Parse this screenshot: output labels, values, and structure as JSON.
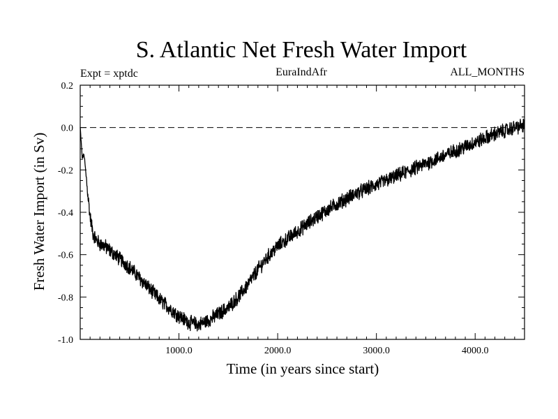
{
  "chart_data": {
    "type": "line",
    "title": "S. Atlantic Net Fresh Water Import",
    "subtitle_left": "Expt = xptdc",
    "subtitle_center": "EuraIndAfr",
    "subtitle_right": "ALL_MONTHS",
    "xlabel": "Time (in years since start)",
    "ylabel": "Fresh Water Import (in Sv)",
    "xlim": [
      0,
      4500
    ],
    "ylim": [
      -1.0,
      0.2
    ],
    "x_tick_labels": [
      "1000.0",
      "2000.0",
      "3000.0",
      "4000.0"
    ],
    "x_ticks": [
      1000,
      2000,
      3000,
      4000
    ],
    "y_tick_labels": [
      "0.2",
      "0.0",
      "-0.2",
      "-0.4",
      "-0.6",
      "-0.8",
      "-1.0"
    ],
    "y_ticks": [
      0.2,
      0.0,
      -0.2,
      -0.4,
      -0.6,
      -0.8,
      -1.0
    ],
    "reference_line": {
      "y": 0.0,
      "style": "dashed"
    },
    "legend": "none",
    "grid": false,
    "series": [
      {
        "x": [
          0,
          20,
          40,
          70,
          100,
          130,
          160,
          200,
          250,
          300,
          350,
          400,
          500,
          600,
          700,
          800,
          900,
          1000,
          1100,
          1200,
          1250,
          1300,
          1400,
          1500,
          1600,
          1700,
          1800,
          1900,
          2000,
          2200,
          2400,
          2600,
          2800,
          3000,
          3200,
          3400,
          3600,
          3800,
          4000,
          4200,
          4400,
          4500
        ],
        "y": [
          0.0,
          -0.14,
          -0.13,
          -0.28,
          -0.42,
          -0.5,
          -0.53,
          -0.55,
          -0.56,
          -0.58,
          -0.6,
          -0.62,
          -0.66,
          -0.71,
          -0.76,
          -0.81,
          -0.85,
          -0.89,
          -0.92,
          -0.93,
          -0.92,
          -0.91,
          -0.88,
          -0.85,
          -0.8,
          -0.74,
          -0.67,
          -0.61,
          -0.56,
          -0.49,
          -0.42,
          -0.36,
          -0.31,
          -0.27,
          -0.23,
          -0.19,
          -0.15,
          -0.11,
          -0.07,
          -0.03,
          0.0,
          0.01
        ],
        "noise_amplitude": 0.03,
        "color": "#000000"
      }
    ]
  }
}
